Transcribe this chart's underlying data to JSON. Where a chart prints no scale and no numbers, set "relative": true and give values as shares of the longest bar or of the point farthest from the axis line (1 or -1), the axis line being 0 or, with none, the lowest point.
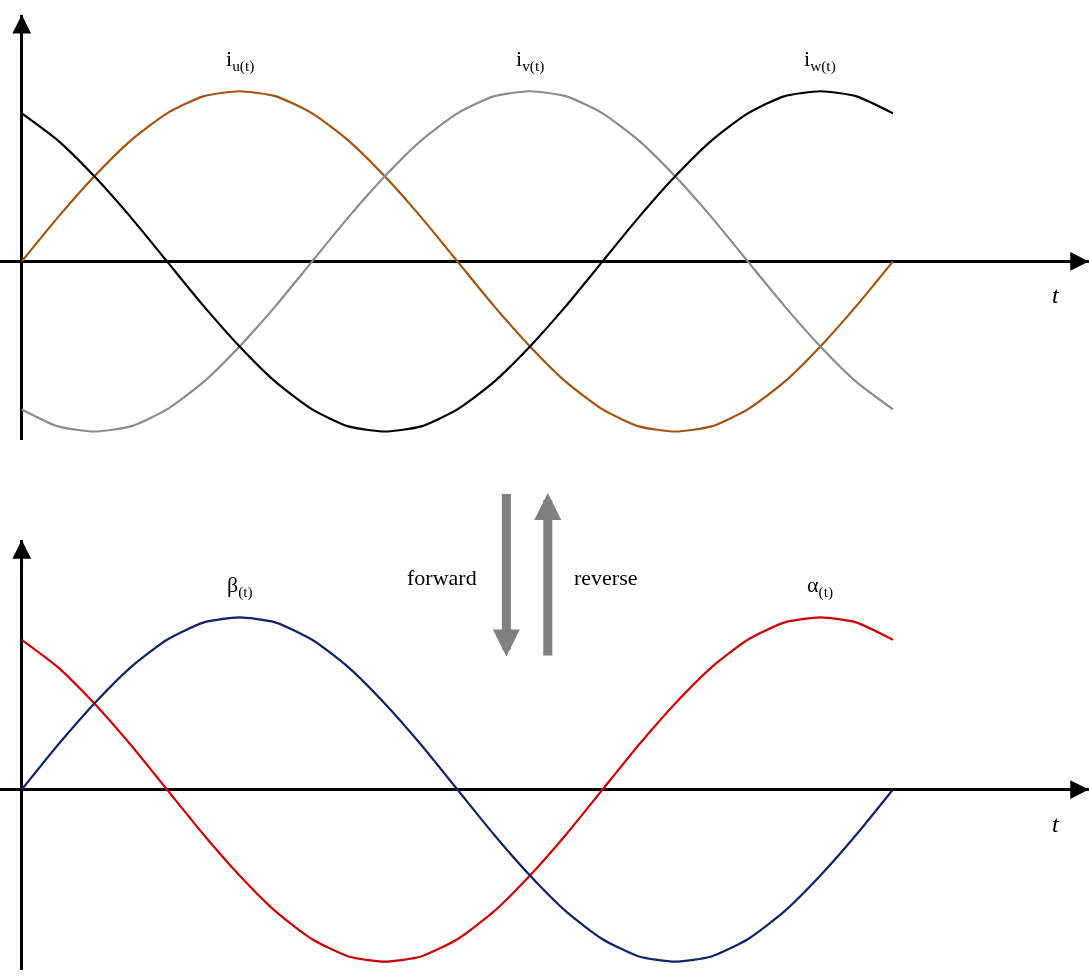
{
  "chart_data": [
    {
      "type": "line",
      "relative": true,
      "xlabel": "t",
      "categories": [
        null,
        null,
        null,
        null,
        null,
        null,
        null,
        null,
        null,
        null,
        null,
        null,
        null,
        null,
        null,
        null,
        null,
        null,
        null,
        null,
        null,
        null,
        null,
        null,
        null
      ],
      "series": [
        {
          "name": "i$_{u(t)}$",
          "color": "#a5530f",
          "values": [
            0,
            0.26,
            0.5,
            0.71,
            0.87,
            0.97,
            1,
            0.97,
            0.87,
            0.71,
            0.5,
            0.26,
            0,
            -0.26,
            -0.5,
            -0.71,
            -0.87,
            -0.97,
            -1,
            -0.97,
            -0.87,
            -0.71,
            -0.5,
            -0.26,
            0
          ]
        },
        {
          "name": "i$_{v(t)}$",
          "color": "#8c8c8c",
          "values": [
            -0.87,
            -0.97,
            -1,
            -0.97,
            -0.87,
            -0.71,
            -0.5,
            -0.26,
            0,
            0.26,
            0.5,
            0.71,
            0.87,
            0.97,
            1,
            0.97,
            0.87,
            0.71,
            0.5,
            0.26,
            0,
            -0.26,
            -0.5,
            -0.71,
            -0.87
          ]
        },
        {
          "name": "i$_{w(t)}$",
          "color": "#000000",
          "values": [
            0.87,
            0.71,
            0.5,
            0.26,
            0,
            -0.26,
            -0.5,
            -0.71,
            -0.87,
            -0.97,
            -1,
            -0.97,
            -0.87,
            -0.71,
            -0.5,
            -0.26,
            0,
            0.26,
            0.5,
            0.71,
            0.87,
            0.97,
            1,
            0.97,
            0.87
          ]
        }
      ]
    },
    {
      "type": "line",
      "relative": true,
      "xlabel": "t",
      "annotations": [
        "forward",
        "reverse"
      ],
      "categories": [
        null,
        null,
        null,
        null,
        null,
        null,
        null,
        null,
        null,
        null,
        null,
        null,
        null,
        null,
        null,
        null,
        null,
        null,
        null,
        null,
        null,
        null,
        null,
        null,
        null
      ],
      "series": [
        {
          "name": "α$_{(t)}$",
          "color": "#cc0000",
          "values": [
            0.87,
            0.71,
            0.5,
            0.26,
            0,
            -0.26,
            -0.5,
            -0.71,
            -0.87,
            -0.97,
            -1,
            -0.97,
            -0.87,
            -0.71,
            -0.5,
            -0.26,
            0,
            0.26,
            0.5,
            0.71,
            0.87,
            0.97,
            1,
            0.97,
            0.87
          ]
        },
        {
          "name": "β$_{(t)}$",
          "color": "#0c2468",
          "values": [
            0,
            0.26,
            0.5,
            0.71,
            0.87,
            0.97,
            1,
            0.97,
            0.87,
            0.71,
            0.5,
            0.26,
            0,
            -0.26,
            -0.5,
            -0.71,
            -0.87,
            -0.97,
            -1,
            -0.97,
            -0.87,
            -0.71,
            -0.5,
            -0.26,
            0
          ]
        }
      ]
    }
  ]
}
